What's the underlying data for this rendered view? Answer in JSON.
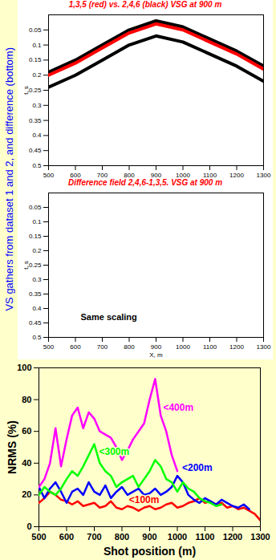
{
  "side_text": "VS gathers from dataset 1 and 2, and difference (bottom)",
  "chart_data": [
    {
      "type": "seismic",
      "title": "1,3,5 (red) vs. 2,4,6 (black) VSG at 900 m",
      "y_label": "t, s",
      "x": [
        500,
        600,
        700,
        800,
        900,
        1000,
        1100,
        1200,
        1300
      ],
      "series": [
        {
          "color": "#000000",
          "values": [
            0.19,
            0.15,
            0.1,
            0.05,
            0.02,
            0.04,
            0.08,
            0.12,
            0.17
          ]
        },
        {
          "color": "#ff0000",
          "values": [
            0.2,
            0.16,
            0.11,
            0.06,
            0.03,
            0.05,
            0.09,
            0.13,
            0.18
          ]
        },
        {
          "color": "#000000",
          "values": [
            0.24,
            0.2,
            0.15,
            0.1,
            0.07,
            0.09,
            0.13,
            0.17,
            0.22
          ]
        }
      ],
      "xlim": [
        500,
        1300
      ],
      "ylim": [
        0,
        0.5
      ],
      "xticks": [
        500,
        600,
        700,
        800,
        900,
        1000,
        1100,
        1200,
        1300
      ],
      "yticks": [
        0.05,
        0.1,
        0.15,
        0.2,
        0.25,
        0.3,
        0.35,
        0.4,
        0.45,
        0.5
      ]
    },
    {
      "type": "seismic",
      "title": "Difference field 2,4,6-1,3,5. VSG at 900 m",
      "x_label": "X, m",
      "y_label": "t, s",
      "annotations": [
        "Same scaling"
      ],
      "xlim": [
        500,
        1300
      ],
      "ylim": [
        0,
        0.5
      ],
      "xticks": [
        500,
        600,
        700,
        800,
        900,
        1000,
        1100,
        1200,
        1300
      ],
      "yticks": [
        0.05,
        0.1,
        0.15,
        0.2,
        0.25,
        0.3,
        0.35,
        0.4,
        0.45,
        0.5
      ]
    },
    {
      "type": "line",
      "x_label": "Shot position (m)",
      "y_label": "NRMS (%)",
      "x": [
        500,
        520,
        540,
        560,
        580,
        600,
        620,
        640,
        660,
        680,
        700,
        720,
        740,
        760,
        780,
        800,
        820,
        840,
        860,
        880,
        900,
        920,
        940,
        960,
        980,
        1000,
        1020,
        1040,
        1060,
        1080,
        1100,
        1120,
        1140,
        1160,
        1180,
        1200,
        1220,
        1240,
        1260,
        1280,
        1300
      ],
      "series": [
        {
          "name": "<100m",
          "color": "#ff0000",
          "values": [
            15,
            18,
            22,
            20,
            17,
            16,
            14,
            16,
            13,
            14,
            15,
            12,
            13,
            16,
            12,
            11,
            13,
            12,
            10,
            12,
            13,
            11,
            12,
            14,
            15,
            12,
            13,
            15,
            16,
            18,
            15,
            16,
            14,
            15,
            12,
            13,
            11,
            12,
            10,
            8,
            4
          ]
        },
        {
          "name": "<200m",
          "color": "#0000ff",
          "values": [
            25,
            18,
            24,
            28,
            22,
            15,
            22,
            24,
            20,
            28,
            22,
            20,
            26,
            18,
            22,
            25,
            20,
            22,
            24,
            20,
            21,
            24,
            20,
            22,
            25,
            32,
            28,
            20,
            17,
            15,
            18,
            16,
            14,
            17,
            15,
            13,
            12,
            14,
            11,
            null,
            null
          ]
        },
        {
          "name": "<300m",
          "color": "#00ff00",
          "values": [
            20,
            25,
            22,
            20,
            24,
            30,
            35,
            32,
            38,
            45,
            52,
            40,
            35,
            32,
            25,
            28,
            30,
            32,
            25,
            30,
            35,
            42,
            38,
            30,
            28,
            22,
            28,
            24,
            22,
            18,
            16,
            15,
            13,
            14,
            null,
            null,
            null,
            null,
            null,
            null,
            null
          ]
        },
        {
          "name": "<400m",
          "color": "#ff00ff",
          "values": [
            25,
            30,
            40,
            62,
            38,
            55,
            70,
            75,
            62,
            72,
            68,
            60,
            58,
            56,
            50,
            42,
            48,
            55,
            60,
            65,
            80,
            93,
            70,
            60,
            45,
            35,
            null,
            null,
            null,
            null,
            null,
            null,
            null,
            null,
            null,
            null,
            null,
            null,
            null,
            null,
            null
          ]
        }
      ],
      "xlim": [
        500,
        1300
      ],
      "ylim": [
        0,
        100
      ],
      "xticks": [
        500,
        600,
        700,
        800,
        900,
        1000,
        1100,
        1200,
        1300
      ],
      "yticks": [
        0,
        20,
        40,
        60,
        80,
        100
      ]
    }
  ]
}
